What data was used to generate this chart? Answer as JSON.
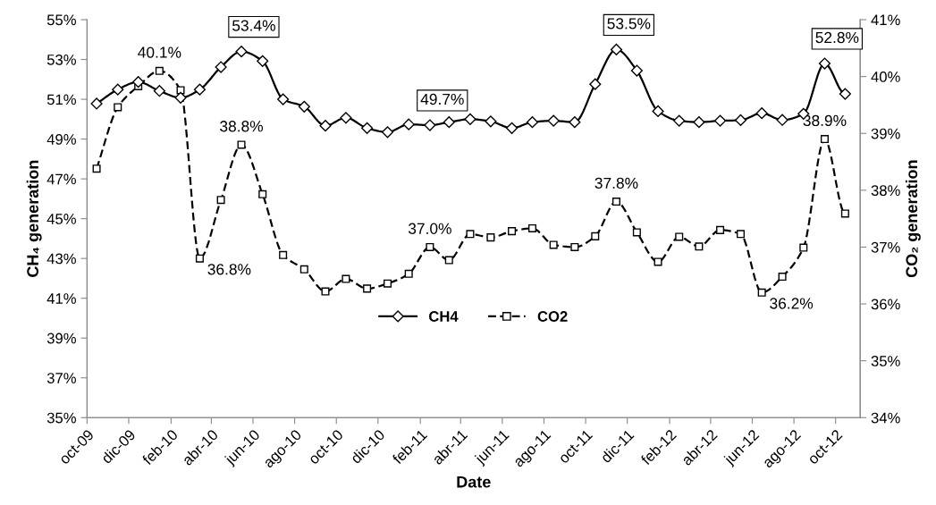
{
  "chart_data": {
    "type": "line",
    "xlabel": "Date",
    "ylabel": "CH₄ generation",
    "y2label": "CO₂ generation",
    "x": [
      "2009-10-15",
      "2009-11-15",
      "2009-12-15",
      "2010-01-15",
      "2010-02-15",
      "2010-03-15",
      "2010-04-15",
      "2010-05-15",
      "2010-06-15",
      "2010-07-15",
      "2010-08-15",
      "2010-09-15",
      "2010-10-15",
      "2010-11-15",
      "2010-12-15",
      "2011-01-15",
      "2011-02-15",
      "2011-03-15",
      "2011-04-15",
      "2011-05-15",
      "2011-06-15",
      "2011-07-15",
      "2011-08-15",
      "2011-09-15",
      "2011-10-15",
      "2011-11-15",
      "2011-12-15",
      "2012-01-15",
      "2012-02-15",
      "2012-03-15",
      "2012-04-15",
      "2012-05-15",
      "2012-06-15",
      "2012-07-15",
      "2012-08-15",
      "2012-09-15",
      "2012-10-15"
    ],
    "series": [
      {
        "name": "CH4",
        "color": "#000000",
        "marker": "diamond",
        "line_style": "solid",
        "values": [
          50.78,
          51.49,
          51.87,
          51.42,
          51.08,
          51.49,
          52.62,
          53.4,
          52.92,
          51.0,
          50.63,
          49.67,
          50.07,
          49.55,
          49.35,
          49.74,
          49.7,
          49.85,
          50.0,
          49.89,
          49.55,
          49.85,
          49.92,
          49.85,
          51.76,
          53.5,
          52.44,
          50.4,
          49.92,
          49.85,
          49.92,
          49.95,
          50.3,
          49.96,
          50.27,
          52.8,
          51.27
        ],
        "value_labels": [
          null,
          null,
          null,
          null,
          null,
          null,
          null,
          "53.4%",
          null,
          null,
          null,
          null,
          null,
          null,
          null,
          null,
          "49.7%",
          null,
          null,
          null,
          null,
          null,
          null,
          null,
          null,
          "53.5%",
          null,
          null,
          null,
          null,
          null,
          null,
          null,
          null,
          null,
          "52.8%",
          null
        ]
      },
      {
        "name": "CO2",
        "color": "#000000",
        "marker": "square",
        "line_style": "dashed",
        "axis": "y2",
        "values": [
          38.38,
          39.46,
          39.83,
          40.1,
          39.76,
          36.8,
          37.83,
          38.8,
          37.93,
          36.86,
          36.61,
          36.22,
          36.44,
          36.27,
          36.36,
          36.53,
          37.0,
          36.77,
          37.23,
          37.17,
          37.28,
          37.33,
          37.04,
          37.0,
          37.19,
          37.8,
          37.26,
          36.74,
          37.18,
          37.01,
          37.3,
          37.23,
          36.2,
          36.48,
          36.99,
          38.9,
          37.59
        ],
        "value_labels": [
          null,
          null,
          null,
          "40.1%",
          null,
          "36.8%",
          null,
          "38.8%",
          null,
          null,
          null,
          null,
          null,
          null,
          null,
          null,
          "37.0%",
          null,
          null,
          null,
          null,
          null,
          null,
          null,
          null,
          "37.8%",
          null,
          null,
          null,
          null,
          null,
          null,
          "36.2%",
          null,
          null,
          "38.9%",
          null
        ]
      }
    ],
    "xlim": [
      "2009-10-01",
      "2012-11-06"
    ],
    "xticks": [
      {
        "value": "2009-10-01",
        "label": "oct-09"
      },
      {
        "value": "2009-12-01",
        "label": "dic-09"
      },
      {
        "value": "2010-02-01",
        "label": "feb-10"
      },
      {
        "value": "2010-04-01",
        "label": "abr-10"
      },
      {
        "value": "2010-06-01",
        "label": "jun-10"
      },
      {
        "value": "2010-08-01",
        "label": "ago-10"
      },
      {
        "value": "2010-10-01",
        "label": "oct-10"
      },
      {
        "value": "2010-12-01",
        "label": "dic-10"
      },
      {
        "value": "2011-02-01",
        "label": "feb-11"
      },
      {
        "value": "2011-04-01",
        "label": "abr-11"
      },
      {
        "value": "2011-06-01",
        "label": "jun-11"
      },
      {
        "value": "2011-08-01",
        "label": "ago-11"
      },
      {
        "value": "2011-10-01",
        "label": "oct-11"
      },
      {
        "value": "2011-12-01",
        "label": "dic-11"
      },
      {
        "value": "2012-02-01",
        "label": "feb-12"
      },
      {
        "value": "2012-04-01",
        "label": "abr-12"
      },
      {
        "value": "2012-06-01",
        "label": "jun-12"
      },
      {
        "value": "2012-08-01",
        "label": "ago-12"
      },
      {
        "value": "2012-10-01",
        "label": "oct-12"
      }
    ],
    "ylim": [
      35,
      55
    ],
    "yticks": [
      {
        "value": 35,
        "label": "35%"
      },
      {
        "value": 37,
        "label": "37%"
      },
      {
        "value": 39,
        "label": "39%"
      },
      {
        "value": 41,
        "label": "41%"
      },
      {
        "value": 43,
        "label": "43%"
      },
      {
        "value": 45,
        "label": "45%"
      },
      {
        "value": 47,
        "label": "47%"
      },
      {
        "value": 49,
        "label": "49%"
      },
      {
        "value": 51,
        "label": "51%"
      },
      {
        "value": 53,
        "label": "53%"
      },
      {
        "value": 55,
        "label": "55%"
      }
    ],
    "y2lim": [
      34,
      41
    ],
    "y2ticks": [
      {
        "value": 34,
        "label": "34%"
      },
      {
        "value": 35,
        "label": "35%"
      },
      {
        "value": 36,
        "label": "36%"
      },
      {
        "value": 37,
        "label": "37%"
      },
      {
        "value": 38,
        "label": "38%"
      },
      {
        "value": 39,
        "label": "39%"
      },
      {
        "value": 40,
        "label": "40%"
      },
      {
        "value": 41,
        "label": "41%"
      }
    ],
    "grid": false,
    "legend": "bottom"
  }
}
